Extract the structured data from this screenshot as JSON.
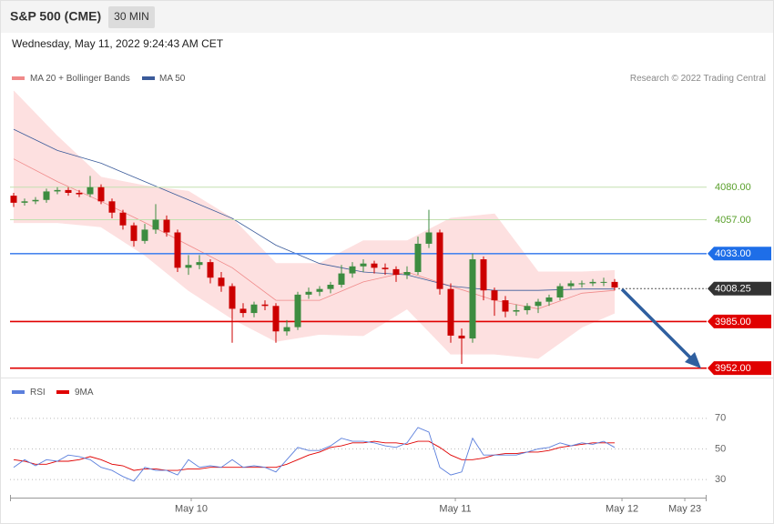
{
  "header": {
    "title": "S&P 500 (CME)",
    "interval": "30 MIN",
    "timestamp": "Wednesday, May 11, 2022 9:24:43 AM CET"
  },
  "chart_data": [
    {
      "type": "candlestick",
      "credit": "Research © 2022 Trading Central",
      "xlim": [
        0,
        63.5
      ],
      "ylim": [
        3946,
        4150
      ],
      "up_color": "#3d8c40",
      "down_color": "#cc0000",
      "candles": {
        "x": [
          0,
          1,
          2,
          3,
          4,
          5,
          6,
          7,
          8,
          9,
          10,
          11,
          12,
          13,
          14,
          15,
          16,
          17,
          18,
          19,
          20,
          21,
          22,
          23,
          24,
          25,
          26,
          27,
          28,
          29,
          30,
          31,
          32,
          33,
          34,
          35,
          36,
          37,
          38,
          39,
          40,
          41,
          42,
          43,
          44,
          45,
          46,
          47,
          48,
          49,
          50,
          51,
          52,
          53,
          54,
          55
        ],
        "open": [
          4074,
          4069,
          4070,
          4071,
          4077,
          4078,
          4076,
          4075,
          4080,
          4070,
          4062,
          4053,
          4042,
          4050,
          4057,
          4048,
          4023,
          4025,
          4027,
          4016,
          4010,
          3994,
          3991,
          3997,
          3996,
          3978,
          3981,
          4004,
          4006,
          4008,
          4011,
          4019,
          4024,
          4026,
          4023,
          4022,
          4018,
          4020,
          4040,
          4048,
          4008,
          3975,
          3973,
          4029,
          4007,
          4000,
          3992,
          3993,
          3996,
          3999,
          4002,
          4010,
          4012,
          4012,
          4013,
          4013
        ],
        "high": [
          4076,
          4072,
          4073,
          4079,
          4080,
          4080,
          4078,
          4088,
          4082,
          4072,
          4064,
          4055,
          4054,
          4068,
          4060,
          4050,
          4032,
          4032,
          4029,
          4020,
          4012,
          3998,
          3999,
          4000,
          3998,
          3986,
          4006,
          4009,
          4010,
          4013,
          4025,
          4027,
          4029,
          4028,
          4026,
          4024,
          4024,
          4045,
          4064,
          4050,
          4012,
          3980,
          4033,
          4031,
          4009,
          4003,
          3997,
          3998,
          4001,
          4004,
          4012,
          4014,
          4014,
          4015,
          4016,
          4015
        ],
        "low": [
          4066,
          4067,
          4068,
          4069,
          4075,
          4074,
          4073,
          4073,
          4068,
          4058,
          4050,
          4038,
          4040,
          4047,
          4045,
          4020,
          4018,
          4022,
          4012,
          4006,
          3970,
          3988,
          3988,
          3993,
          3970,
          3975,
          3979,
          4001,
          4003,
          4005,
          4009,
          4016,
          4020,
          4019,
          4018,
          4013,
          4015,
          4018,
          4037,
          4004,
          3970,
          3955,
          3970,
          4000,
          3989,
          3988,
          3989,
          3990,
          3991,
          3996,
          4000,
          4008,
          4009,
          4010,
          4010,
          4007
        ],
        "close": [
          4069,
          4070,
          4071,
          4077,
          4078,
          4076,
          4075,
          4080,
          4070,
          4062,
          4053,
          4042,
          4050,
          4057,
          4048,
          4023,
          4025,
          4027,
          4016,
          4010,
          3994,
          3991,
          3997,
          3996,
          3978,
          3981,
          4004,
          4006,
          4008,
          4011,
          4019,
          4024,
          4026,
          4023,
          4022,
          4018,
          4020,
          4040,
          4048,
          4008,
          3975,
          3973,
          4029,
          4007,
          4000,
          3992,
          3993,
          3996,
          3999,
          4002,
          4010,
          4012,
          4012,
          4013,
          4013,
          4009
        ]
      },
      "series": [
        {
          "name": "MA 20 + Bollinger Bands",
          "color": "#f08a8a",
          "band_color": "#fde0e0",
          "x": [
            0,
            4,
            8,
            12,
            16,
            20,
            24,
            28,
            32,
            36,
            40,
            44,
            48,
            52,
            55
          ],
          "values": [
            4100,
            4084,
            4070,
            4055,
            4039,
            4023,
            4000,
            4000,
            4013,
            4020,
            4010,
            4000,
            3994,
            4005,
            4007
          ],
          "upper": [
            4148,
            4116,
            4087,
            4081,
            4077,
            4058,
            4026,
            4026,
            4042,
            4042,
            4058,
            4061,
            4020,
            4020,
            4021
          ],
          "lower": [
            4055,
            4055,
            4052,
            4032,
            4007,
            3987,
            3971,
            3976,
            3975,
            3994,
            3962,
            3962,
            3959,
            3981,
            3991
          ]
        },
        {
          "name": "MA 50",
          "color": "#3b5b9a",
          "x": [
            0,
            4,
            8,
            12,
            16,
            20,
            24,
            28,
            32,
            36,
            40,
            44,
            48,
            52,
            55
          ],
          "values": [
            4121,
            4106,
            4097,
            4084,
            4071,
            4058,
            4039,
            4026,
            4020,
            4018,
            4010,
            4007,
            4007,
            4008,
            4008
          ]
        }
      ],
      "levels": [
        {
          "value": 4080,
          "label": "4080.00",
          "color": "#5aa02c",
          "line_color": "#c3e0b0",
          "boxed": false,
          "dashed": false
        },
        {
          "value": 4057,
          "label": "4057.00",
          "color": "#5aa02c",
          "line_color": "#c3e0b0",
          "boxed": false,
          "dashed": false
        },
        {
          "value": 4033,
          "label": "4033.00",
          "color": "#1e6ee8",
          "line_color": "#4a86ee",
          "boxed": true,
          "dashed": false
        },
        {
          "value": 4008.25,
          "label": "4008.25",
          "color": "#333333",
          "line_color": "#555555",
          "boxed": true,
          "dashed": true
        },
        {
          "value": 3985,
          "label": "3985.00",
          "color": "#e00000",
          "line_color": "#e00000",
          "boxed": true,
          "dashed": false
        },
        {
          "value": 3952,
          "label": "3952.00",
          "color": "#e00000",
          "line_color": "#e00000",
          "boxed": true,
          "dashed": false
        }
      ]
    },
    {
      "type": "line",
      "xlim": [
        0,
        63.5
      ],
      "ylim": [
        20,
        80
      ],
      "yticks": [
        30,
        50,
        70
      ],
      "x": [
        0,
        1,
        2,
        3,
        4,
        5,
        6,
        7,
        8,
        9,
        10,
        11,
        12,
        13,
        14,
        15,
        16,
        17,
        18,
        19,
        20,
        21,
        22,
        23,
        24,
        25,
        26,
        27,
        28,
        29,
        30,
        31,
        32,
        33,
        34,
        35,
        36,
        37,
        38,
        39,
        40,
        41,
        42,
        43,
        44,
        45,
        46,
        47,
        48,
        49,
        50,
        51,
        52,
        53,
        54,
        55
      ],
      "xticks": [
        {
          "value": 16.25,
          "label": "May 10"
        },
        {
          "value": 40.42,
          "label": "May 11"
        },
        {
          "value": 55.67,
          "label": "May 12"
        },
        {
          "value": 61.42,
          "label": "May 23"
        }
      ],
      "series": [
        {
          "name": "RSI",
          "color": "#5b7fdc",
          "values": [
            38,
            43,
            39,
            43,
            42,
            46,
            45,
            43,
            38,
            36,
            32,
            29,
            38,
            36,
            36,
            33,
            43,
            38,
            39,
            38,
            43,
            38,
            39,
            38,
            35,
            43,
            51,
            49,
            49,
            52,
            57,
            55,
            55,
            54,
            52,
            51,
            54,
            64,
            61,
            38,
            33,
            35,
            57,
            46,
            46,
            46,
            46,
            48,
            50,
            51,
            54,
            52,
            54,
            53,
            55,
            51
          ]
        },
        {
          "name": "9MA",
          "color": "#e00000",
          "values": [
            43,
            42,
            40,
            40,
            42,
            42,
            43,
            45,
            43,
            40,
            39,
            36,
            37,
            37,
            36,
            36,
            37,
            37,
            38,
            38,
            38,
            38,
            38,
            38,
            38,
            40,
            43,
            46,
            48,
            51,
            52,
            54,
            54,
            55,
            54,
            54,
            53,
            55,
            55,
            51,
            46,
            43,
            43,
            44,
            46,
            47,
            47,
            48,
            48,
            49,
            51,
            52,
            53,
            54,
            54,
            54
          ]
        }
      ]
    }
  ]
}
